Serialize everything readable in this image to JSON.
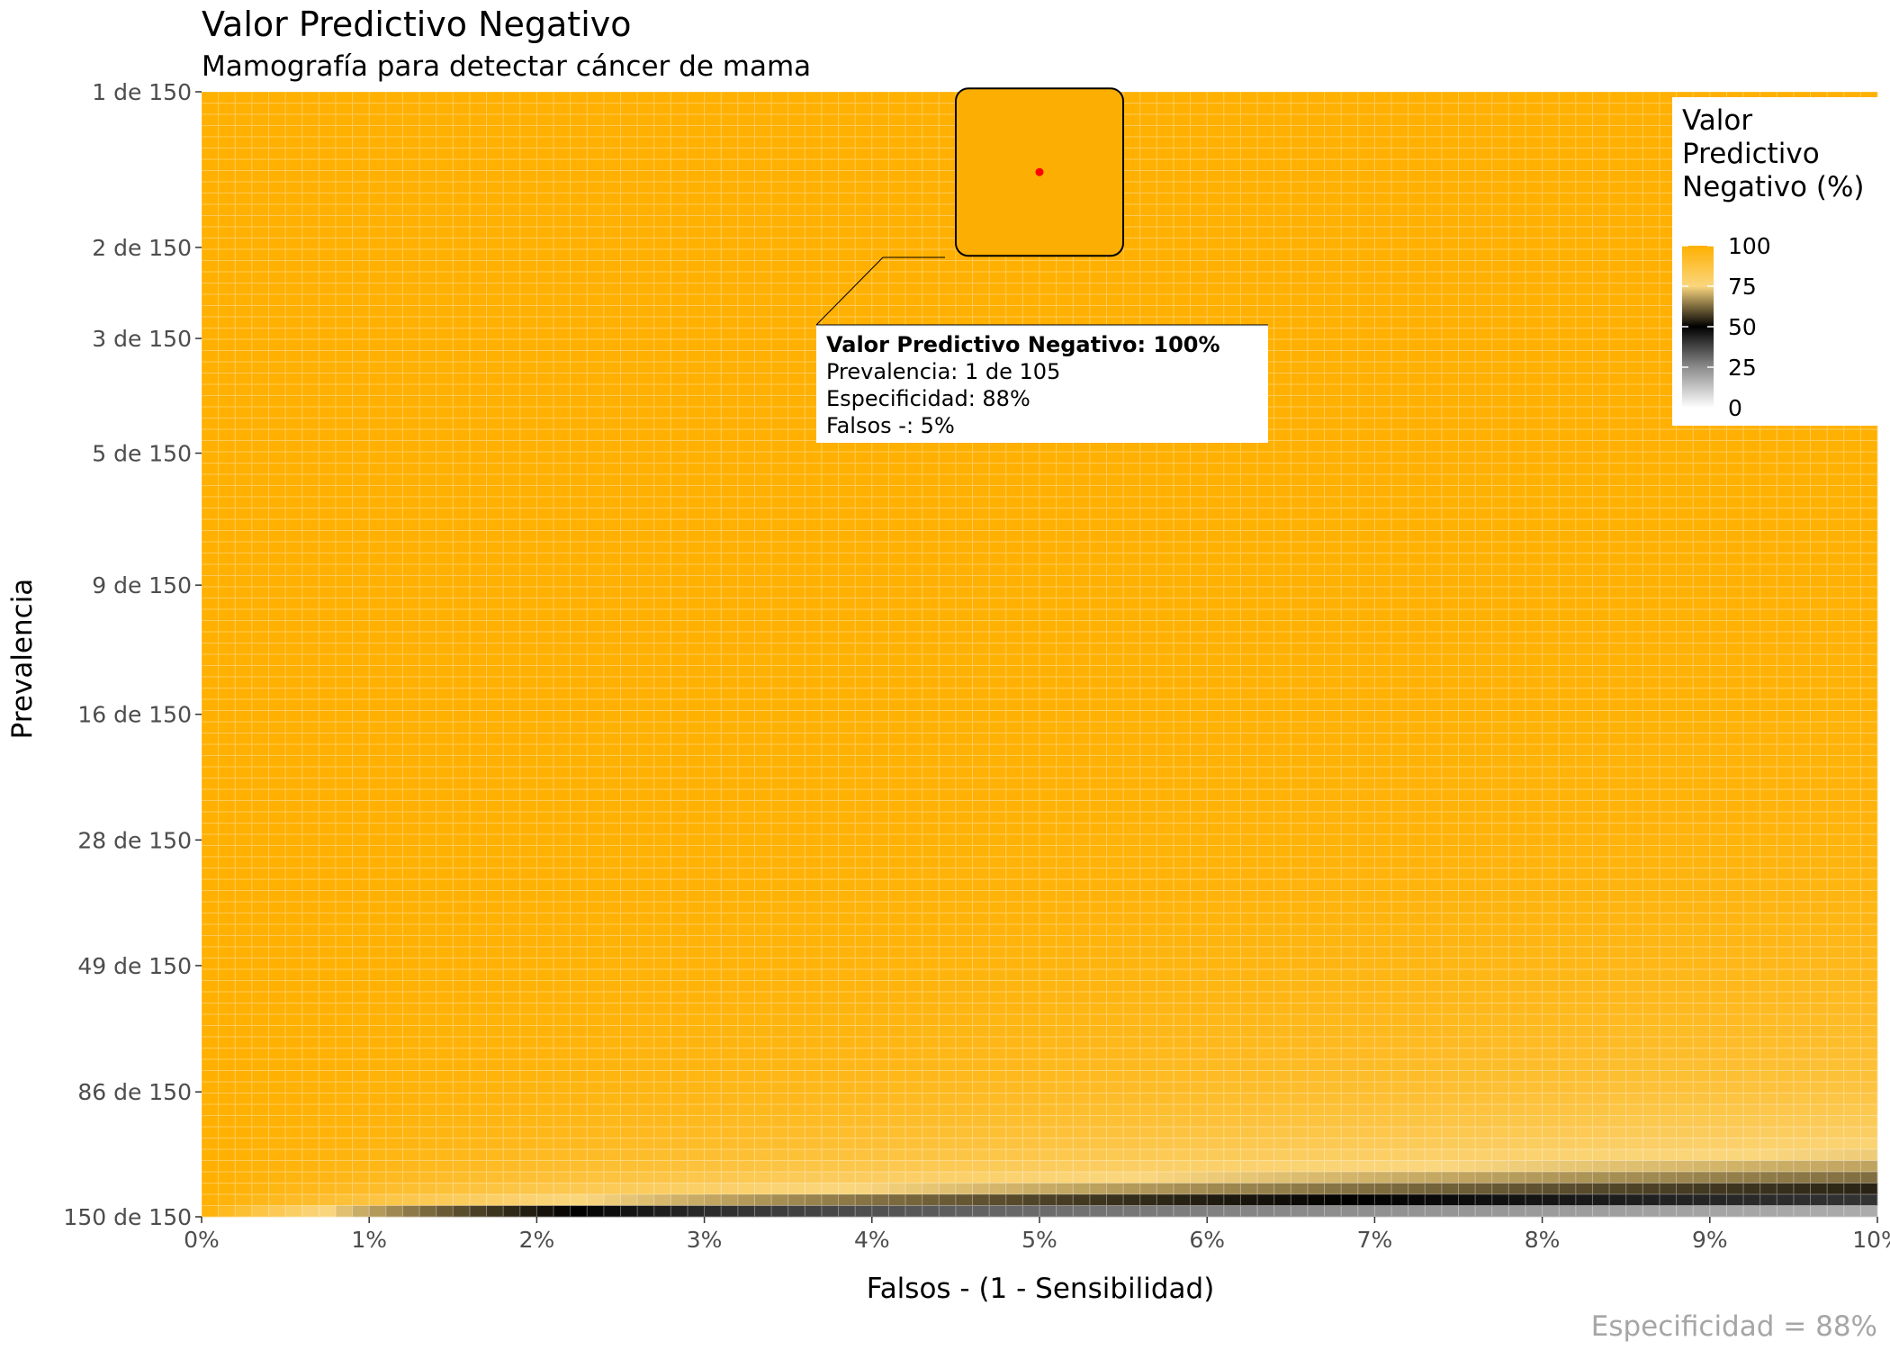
{
  "chart_data": {
    "type": "heatmap",
    "title": "Valor Predictivo Negativo",
    "subtitle": "Mamografía para detectar cáncer de mama",
    "xlabel": "Falsos - (1 - Sensibilidad)",
    "ylabel": "Prevalencia",
    "caption": "Especificidad = 88%",
    "specificity": 0.88,
    "x_range": [
      0,
      0.1
    ],
    "x_ticks": [
      "0%",
      "1%",
      "2%",
      "3%",
      "4%",
      "5%",
      "6%",
      "7%",
      "8%",
      "9%",
      "10%"
    ],
    "y_ticks": [
      "1 de 150",
      "2 de 150",
      "3 de 150",
      "5 de 150",
      "9 de 150",
      "16 de 150",
      "28 de 150",
      "49 de 150",
      "86 de 150",
      "150 de 150"
    ],
    "y_tick_values": [
      1,
      2,
      3,
      5,
      9,
      16,
      28,
      49,
      86,
      150
    ],
    "y_scale": "log",
    "y_range": [
      1,
      150
    ],
    "y_denominator": 150,
    "grid_columns": 100,
    "grid_rows": 100,
    "legend": {
      "title_lines": [
        "Valor",
        "Predictivo",
        "Negativo (%)"
      ],
      "labels": [
        "100",
        "75",
        "50",
        "25",
        "0"
      ],
      "values": [
        100,
        75,
        50,
        25,
        0
      ],
      "position": "top-right"
    },
    "color_stops": [
      {
        "value": 0,
        "color": "#ffffff"
      },
      {
        "value": 25,
        "color": "#8c8c8c"
      },
      {
        "value": 50,
        "color": "#000000"
      },
      {
        "value": 75,
        "color": "#fad67d"
      },
      {
        "value": 100,
        "color": "#ffb000"
      }
    ],
    "annotation": {
      "point": {
        "x": 0.05,
        "prevalence": 1.43
      },
      "point_color": "#ff0000",
      "lines": [
        "Valor Predictivo Negativo: 100%",
        "Prevalencia: 1 de 105",
        "Especificidad: 88%",
        "Falsos -: 5%"
      ]
    }
  }
}
